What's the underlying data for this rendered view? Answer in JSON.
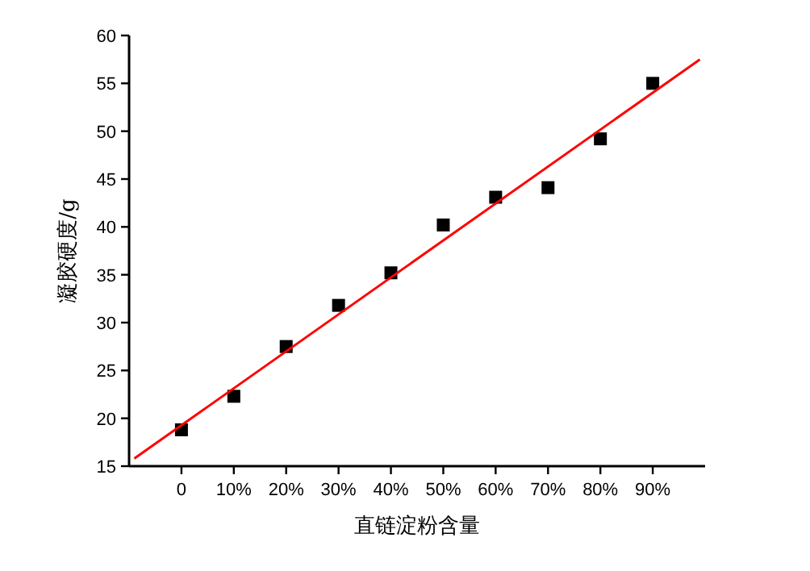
{
  "chart_data": {
    "type": "scatter",
    "xlabel": "直链淀粉含量",
    "ylabel": "凝胶硬度/g",
    "xlim": [
      -10,
      100
    ],
    "ylim": [
      15,
      60
    ],
    "xticks": [
      0,
      {
        "value": 10,
        "label": "10%"
      },
      {
        "value": 20,
        "label": "20%"
      },
      {
        "value": 30,
        "label": "30%"
      },
      {
        "value": 40,
        "label": "40%"
      },
      {
        "value": 50,
        "label": "50%"
      },
      {
        "value": 60,
        "label": "60%"
      },
      {
        "value": 70,
        "label": "70%"
      },
      {
        "value": 80,
        "label": "80%"
      },
      {
        "value": 90,
        "label": "90%"
      }
    ],
    "yticks": [
      15,
      20,
      25,
      30,
      35,
      40,
      45,
      50,
      55,
      60
    ],
    "marker": "square",
    "series": [
      {
        "color": "#000000",
        "x": [
          0,
          10,
          20,
          30,
          40,
          50,
          60,
          70,
          80,
          90
        ],
        "values": [
          18.8,
          22.3,
          27.5,
          31.8,
          35.2,
          40.2,
          43.1,
          44.1,
          49.2,
          55.0
        ]
      },
      {
        "type": "line",
        "color": "#ff0000",
        "marker": "none",
        "x": [
          -9,
          99
        ],
        "values": [
          15.8,
          57.5
        ]
      }
    ]
  }
}
